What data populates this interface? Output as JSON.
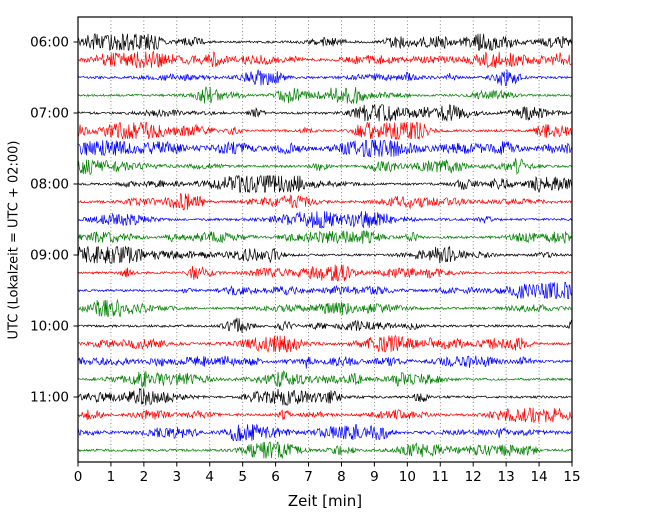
{
  "chart_data": {
    "type": "line",
    "title": "",
    "xlabel": "Zeit  [min]",
    "ylabel": "UTC (Lokalzeit = UTC + 02:00)",
    "xlim": [
      0,
      15
    ],
    "xticks": [
      "0",
      "1",
      "2",
      "3",
      "4",
      "5",
      "6",
      "7",
      "8",
      "9",
      "10",
      "11",
      "12",
      "13",
      "14",
      "15"
    ],
    "ytick_labels": [
      "06:00",
      "07:00",
      "08:00",
      "09:00",
      "10:00",
      "11:00"
    ],
    "traces_per_hour": 4,
    "minutes_per_trace": 15,
    "trace_colors": [
      "#000000",
      "#ff0000",
      "#0000ff",
      "#008000"
    ],
    "grid": {
      "vertical": true,
      "style": "dotted"
    },
    "legend": "none",
    "note": "Helicorder-style seismogram: 24 consecutive 15-minute noise traces (06:00-11:45 UTC), line colors cycling black, red, blue, green per hour; dotted vertical minute gridlines"
  }
}
